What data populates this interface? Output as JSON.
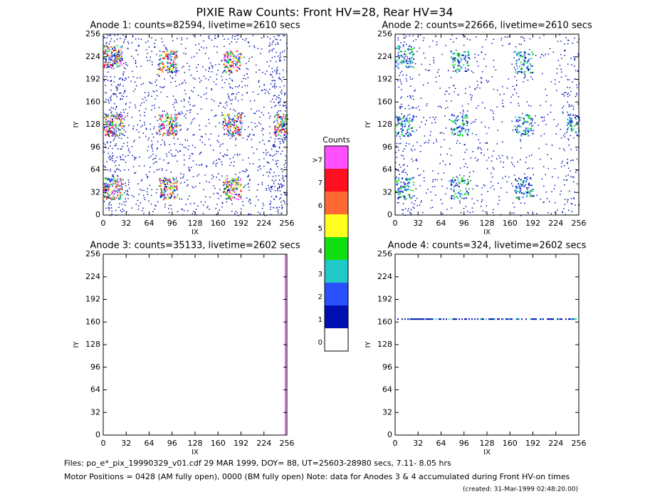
{
  "title": "PIXIE Raw Counts:  Front HV=28, Rear HV=34",
  "chart_data": [
    {
      "type": "heatmap",
      "title": "Anode 1: counts=82594, livetime=2610 secs",
      "xlabel": "IX",
      "ylabel": "IY",
      "xlim": [
        0,
        256
      ],
      "ylim": [
        0,
        256
      ],
      "xticks": [
        0,
        32,
        64,
        96,
        128,
        160,
        192,
        224,
        256
      ],
      "yticks": [
        0,
        32,
        64,
        96,
        128,
        160,
        192,
        224,
        256
      ]
    },
    {
      "type": "heatmap",
      "title": "Anode 2: counts=22666, livetime=2610 secs",
      "xlabel": "IX",
      "ylabel": "IY",
      "xlim": [
        0,
        256
      ],
      "ylim": [
        0,
        256
      ],
      "xticks": [
        0,
        32,
        64,
        96,
        128,
        160,
        192,
        224,
        256
      ],
      "yticks": [
        0,
        32,
        64,
        96,
        128,
        160,
        192,
        224,
        256
      ]
    },
    {
      "type": "heatmap",
      "title": "Anode 3: counts=35133, livetime=2602 secs",
      "xlabel": "IX",
      "ylabel": "IY",
      "xlim": [
        0,
        256
      ],
      "ylim": [
        0,
        256
      ],
      "xticks": [
        0,
        32,
        64,
        96,
        128,
        160,
        192,
        224,
        256
      ],
      "yticks": [
        0,
        32,
        64,
        96,
        128,
        160,
        192,
        224,
        256
      ]
    },
    {
      "type": "heatmap",
      "title": "Anode 4: counts=324, livetime=2602 secs",
      "xlabel": "IX",
      "ylabel": "IY",
      "xlim": [
        0,
        256
      ],
      "ylim": [
        0,
        256
      ],
      "xticks": [
        0,
        32,
        64,
        96,
        128,
        160,
        192,
        224,
        256
      ],
      "yticks": [
        0,
        32,
        64,
        96,
        128,
        160,
        192,
        224,
        256
      ]
    }
  ],
  "colorbar": {
    "title": "Counts",
    "labels": [
      "0",
      "1",
      "2",
      "3",
      "4",
      "5",
      "6",
      "7",
      ">7"
    ],
    "colors": [
      "#ffffff",
      "#0010b0",
      "#2850ff",
      "#20c8c8",
      "#10e010",
      "#ffff20",
      "#ff6830",
      "#ff1020",
      "#ff50ff"
    ]
  },
  "footer": {
    "files": "Files: po_e*_pix_19990329_v01.cdf   29 MAR 1999, DOY= 88, UT=25603-28980 secs,  7.11- 8.05 hrs",
    "motor": "Motor Positions = 0428 (AM fully open), 0000 (BM fully open)   Note: data for Anodes 3 & 4 accumulated during Front HV-on times",
    "created": "(created: 31-Mar-1999 02:48:20.00)"
  }
}
